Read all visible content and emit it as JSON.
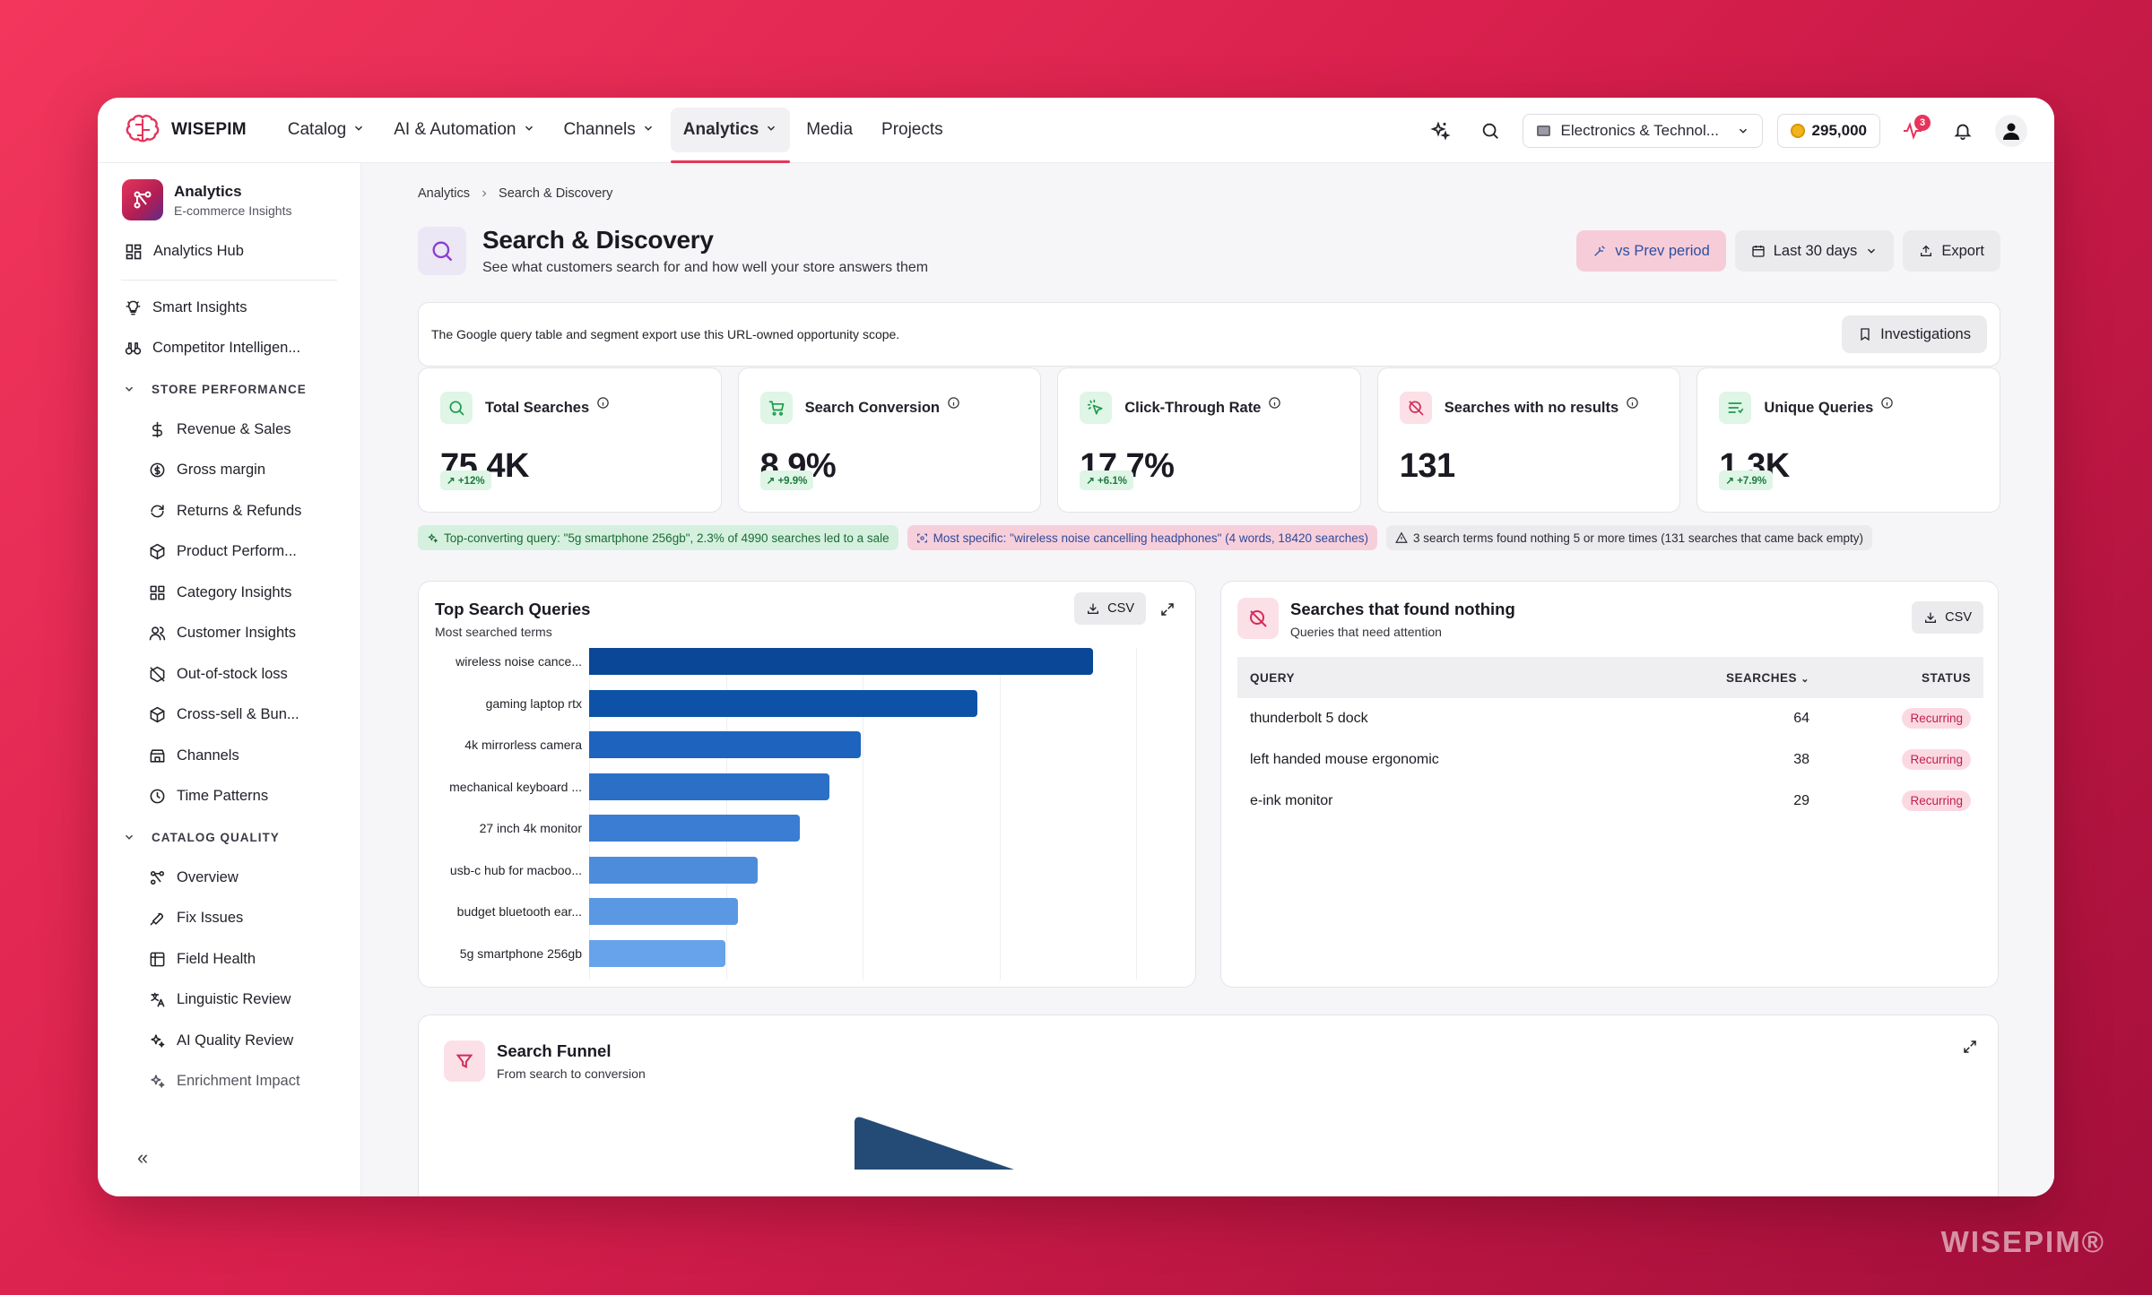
{
  "app": {
    "brand": "WISEPIM",
    "watermark": "WISEPIM®"
  },
  "nav": {
    "items": [
      {
        "label": "Catalog",
        "dropdown": true
      },
      {
        "label": "AI & Automation",
        "dropdown": true
      },
      {
        "label": "Channels",
        "dropdown": true
      },
      {
        "label": "Analytics",
        "dropdown": true,
        "active": true
      },
      {
        "label": "Media",
        "dropdown": false
      },
      {
        "label": "Projects",
        "dropdown": false
      }
    ],
    "store": "Electronics & Technol...",
    "credits": "295,000",
    "notification_count": "3"
  },
  "sidebar": {
    "title": "Analytics",
    "subtitle": "E-commerce Insights",
    "hub": "Analytics Hub",
    "top": [
      {
        "label": "Smart Insights",
        "icon": "bulb-icon"
      },
      {
        "label": "Competitor Intelligen...",
        "icon": "binoculars-icon"
      }
    ],
    "section1": "STORE PERFORMANCE",
    "store_items": [
      {
        "label": "Revenue & Sales",
        "icon": "dollar-icon"
      },
      {
        "label": "Gross margin",
        "icon": "coin-icon"
      },
      {
        "label": "Returns & Refunds",
        "icon": "refresh-icon"
      },
      {
        "label": "Product Perform...",
        "icon": "box-icon"
      },
      {
        "label": "Category Insights",
        "icon": "grid-icon"
      },
      {
        "label": "Customer Insights",
        "icon": "users-icon"
      },
      {
        "label": "Out-of-stock loss",
        "icon": "package-off-icon"
      },
      {
        "label": "Cross-sell & Bun...",
        "icon": "box-icon"
      },
      {
        "label": "Channels",
        "icon": "store-icon"
      },
      {
        "label": "Time Patterns",
        "icon": "clock-icon"
      }
    ],
    "section2": "CATALOG QUALITY",
    "catalog_items": [
      {
        "label": "Overview",
        "icon": "workflow-icon"
      },
      {
        "label": "Fix Issues",
        "icon": "wrench-icon"
      },
      {
        "label": "Field Health",
        "icon": "table-icon"
      },
      {
        "label": "Linguistic Review",
        "icon": "translate-icon"
      },
      {
        "label": "AI Quality Review",
        "icon": "sparkles-icon"
      },
      {
        "label": "Enrichment Impact",
        "icon": "sparkles-icon"
      }
    ],
    "collapse": "«"
  },
  "breadcrumb": [
    "Analytics",
    "Search & Discovery"
  ],
  "header": {
    "title": "Search & Discovery",
    "subtitle": "See what customers search for and how well your store answers them",
    "compare": "vs Prev period",
    "range": "Last 30 days",
    "export": "Export"
  },
  "scope": {
    "text": "The Google query table and segment export use this URL-owned opportunity scope.",
    "button": "Investigations"
  },
  "kpis": [
    {
      "label": "Total Searches",
      "value": "75.4K",
      "delta": "+12%",
      "icon": "search-icon",
      "bg": "#dff5e6",
      "fg": "#1b9a4a"
    },
    {
      "label": "Search Conversion",
      "value": "8.9%",
      "delta": "+9.9%",
      "icon": "cart-icon",
      "bg": "#dff5e6",
      "fg": "#1b9a4a"
    },
    {
      "label": "Click-Through Rate",
      "value": "17.7%",
      "delta": "+6.1%",
      "icon": "click-icon",
      "bg": "#dff5e6",
      "fg": "#1b9a4a"
    },
    {
      "label": "Searches with no results",
      "value": "131",
      "delta": "",
      "icon": "search-off-icon",
      "bg": "#fbe0e8",
      "fg": "#d42a57"
    },
    {
      "label": "Unique Queries",
      "value": "1.3K",
      "delta": "+7.9%",
      "icon": "list-filter-icon",
      "bg": "#dff5e6",
      "fg": "#1b9a4a"
    }
  ],
  "insights": [
    {
      "text": "Top-converting query: \"5g smartphone 256gb\", 2.3% of 4990 searches led to a sale",
      "tone": "green"
    },
    {
      "text": "Most specific: \"wireless noise cancelling headphones\" (4 words, 18420 searches)",
      "tone": "pink"
    },
    {
      "text": "3 search terms found nothing 5 or more times (131 searches that came back empty)",
      "tone": "grey"
    }
  ],
  "top_queries": {
    "title": "Top Search Queries",
    "subtitle": "Most searched terms",
    "csv": "CSV"
  },
  "chart_data": {
    "type": "bar",
    "orientation": "horizontal",
    "title": "Top Search Queries",
    "subtitle": "Most searched terms",
    "categories": [
      "wireless noise cance...",
      "gaming laptop rtx",
      "4k mirrorless camera",
      "mechanical keyboard ...",
      "27 inch 4k monitor",
      "usb-c hub for macboo...",
      "budget bluetooth ear...",
      "5g smartphone 256gb"
    ],
    "values": [
      18420,
      14200,
      9950,
      8800,
      7700,
      6150,
      5450,
      4990
    ],
    "xlim": [
      0,
      20000
    ],
    "grid": true,
    "colors": [
      "#0a4796",
      "#0e52a8",
      "#1e63bd",
      "#2c6fc7",
      "#3b7dd3",
      "#4d8cdb",
      "#5a98e3",
      "#66a3ea"
    ]
  },
  "no_results": {
    "title": "Searches that found nothing",
    "subtitle": "Queries that need attention",
    "csv": "CSV",
    "columns": [
      "QUERY",
      "SEARCHES",
      "STATUS"
    ],
    "rows": [
      {
        "query": "thunderbolt 5 dock",
        "searches": "64",
        "status": "Recurring"
      },
      {
        "query": "left handed mouse ergonomic",
        "searches": "38",
        "status": "Recurring"
      },
      {
        "query": "e-ink monitor",
        "searches": "29",
        "status": "Recurring"
      }
    ]
  },
  "funnel": {
    "title": "Search Funnel",
    "subtitle": "From search to conversion"
  },
  "colors": {
    "accent": "#e6345a",
    "bar_dark": "#0a4796",
    "bar_light": "#66a3ea"
  }
}
